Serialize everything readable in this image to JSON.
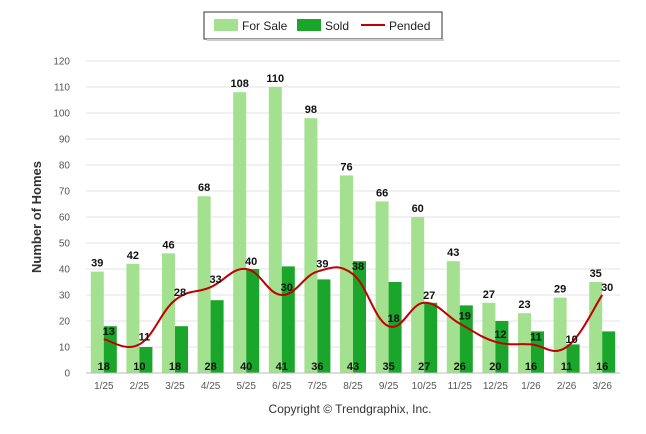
{
  "chart_data": {
    "type": "bar",
    "title": "",
    "xlabel": "",
    "ylabel": "Number of Homes",
    "ylim": [
      0,
      120
    ],
    "yticks": [
      0,
      10,
      20,
      30,
      40,
      50,
      60,
      70,
      80,
      90,
      100,
      110,
      120
    ],
    "categories": [
      "1/25",
      "2/25",
      "3/25",
      "4/25",
      "5/25",
      "6/25",
      "7/25",
      "8/25",
      "9/25",
      "10/25",
      "11/25",
      "12/25",
      "1/26",
      "2/26",
      "3/26"
    ],
    "series": [
      {
        "name": "For Sale",
        "kind": "bar",
        "color": "#a3e08f",
        "values": [
          39,
          42,
          46,
          68,
          108,
          110,
          98,
          76,
          66,
          60,
          43,
          27,
          23,
          29,
          35
        ]
      },
      {
        "name": "Sold",
        "kind": "bar",
        "color": "#1aa62a",
        "values": [
          18,
          10,
          18,
          28,
          40,
          41,
          36,
          43,
          35,
          27,
          26,
          20,
          16,
          11,
          16
        ]
      },
      {
        "name": "Pended",
        "kind": "line",
        "color": "#c00000",
        "values": [
          13,
          11,
          28,
          33,
          40,
          30,
          39,
          38,
          18,
          27,
          19,
          12,
          11,
          10,
          30
        ]
      }
    ],
    "legend": "top-center",
    "grid": true,
    "credit": "Copyright © Trendgraphix, Inc."
  }
}
